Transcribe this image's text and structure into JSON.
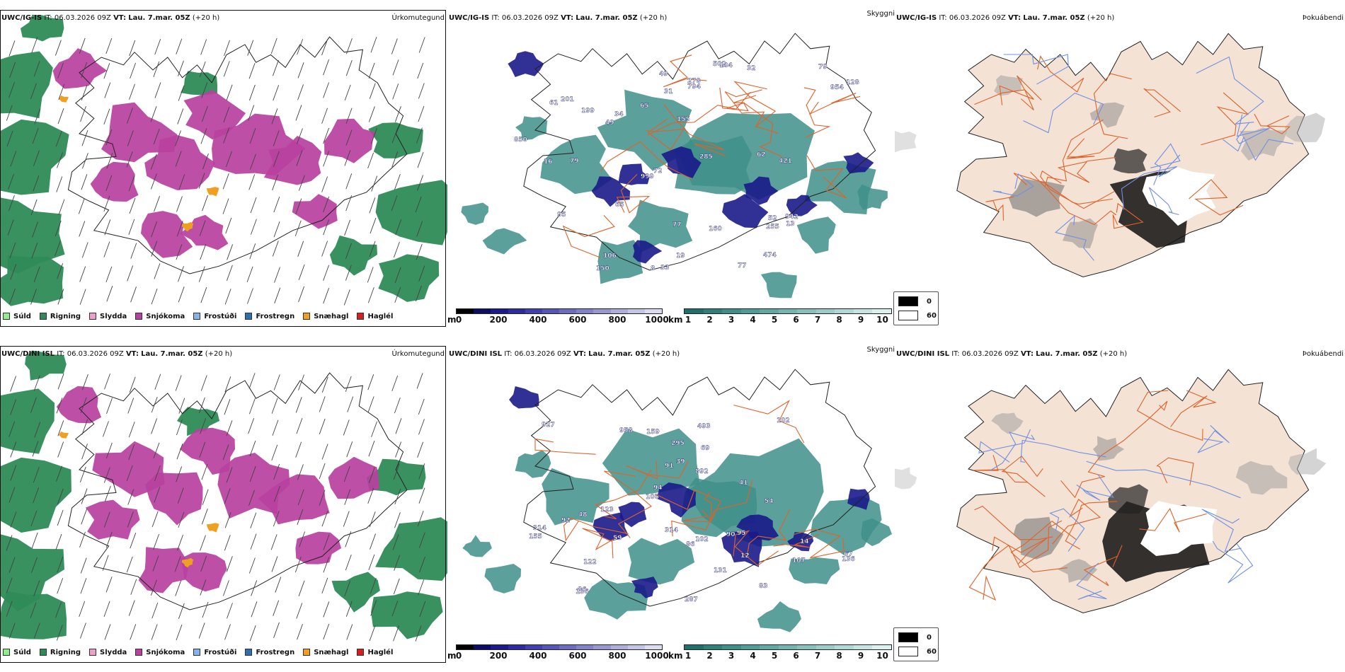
{
  "rows": [
    {
      "model": "UWC/IG-IS",
      "it_label": "IT:",
      "it_value": "06.03.2026 09Z",
      "vt_label": "VT:",
      "vt_value": "Lau. 7.mar. 05Z",
      "lead": "(+20 h)",
      "cloud_numbers": [
        "79",
        "199",
        "32",
        "16",
        "954",
        "49",
        "421",
        "285",
        "278",
        "160",
        "999",
        "255",
        "13",
        "52",
        "65",
        "942",
        "850",
        "794",
        "79",
        "77",
        "62",
        "33",
        "155",
        "150",
        "474",
        "65",
        "49",
        "201",
        "19",
        "104",
        "128",
        "95",
        "61",
        "502",
        "77",
        "106",
        "34",
        "8",
        "72",
        "31"
      ]
    },
    {
      "model": "UWC/DINI ISL",
      "it_label": "IT:",
      "it_value": "06.03.2026 09Z",
      "vt_label": "VT:",
      "vt_value": "Lau. 7.mar. 05Z",
      "lead": "(+20 h)",
      "cloud_numbers": [
        "14",
        "83",
        "102",
        "927",
        "131",
        "48",
        "892",
        "314",
        "155",
        "102",
        "90",
        "12",
        "94",
        "295",
        "159",
        "287",
        "59",
        "69",
        "92",
        "91",
        "39",
        "95",
        "123",
        "86",
        "106",
        "314",
        "67",
        "41",
        "136",
        "122",
        "107",
        "136",
        "493",
        "86",
        "54",
        "958"
      ]
    }
  ],
  "panel_titles": {
    "precip_type": "Úrkomutegund",
    "cloud": "Skyggni",
    "fog": "Þokuábendi"
  },
  "precip_legend": [
    {
      "label": "Súld",
      "color": "#90ee90"
    },
    {
      "label": "Rigning",
      "color": "#2e8b57"
    },
    {
      "label": "Slydda",
      "color": "#f0a0c8"
    },
    {
      "label": "Snjókoma",
      "color": "#b8409e"
    },
    {
      "label": "Frostúði",
      "color": "#87b4e6"
    },
    {
      "label": "Frostregn",
      "color": "#2f6fb0"
    },
    {
      "label": "Snæhagl",
      "color": "#f0a020"
    },
    {
      "label": "Haglél",
      "color": "#d62020"
    }
  ],
  "cloud_base_bar": {
    "unit": "m",
    "ticks": [
      "0",
      "200",
      "400",
      "600",
      "800",
      "1000"
    ],
    "colors": [
      "#000000",
      "#0c0c66",
      "#1a1a8a",
      "#2c2ca0",
      "#4040b0",
      "#5656b8",
      "#6c6cc0",
      "#8282c8",
      "#9898d0",
      "#aeaed8",
      "#c4c4e4",
      "#dcdcf0"
    ]
  },
  "visibility_bar": {
    "unit": "km",
    "ticks": [
      "1",
      "2",
      "3",
      "4",
      "5",
      "6",
      "7",
      "8",
      "9",
      "10"
    ],
    "colors": [
      "#1f6f6a",
      "#2f807a",
      "#3f8f89",
      "#509c97",
      "#62a8a3",
      "#75b4af",
      "#89c0bc",
      "#9dccc8",
      "#b2d8d5",
      "#c7e4e1",
      "#dcf0ee"
    ]
  },
  "fog_legend": [
    {
      "label": "0",
      "color": "#000000"
    },
    {
      "label": "60",
      "color": "#ffffff"
    }
  ],
  "colors": {
    "land": "#f4e2d4",
    "roads": "#e0622a",
    "rivers": "#7090e0",
    "coast": "#222222",
    "snow": "#b8409e",
    "rain": "#2e8b57",
    "visibility": "#3f8f89",
    "cloud_base": "#1a1a8a"
  },
  "icons": [
    "wind-barb-icon",
    "color-swatch-icon"
  ]
}
